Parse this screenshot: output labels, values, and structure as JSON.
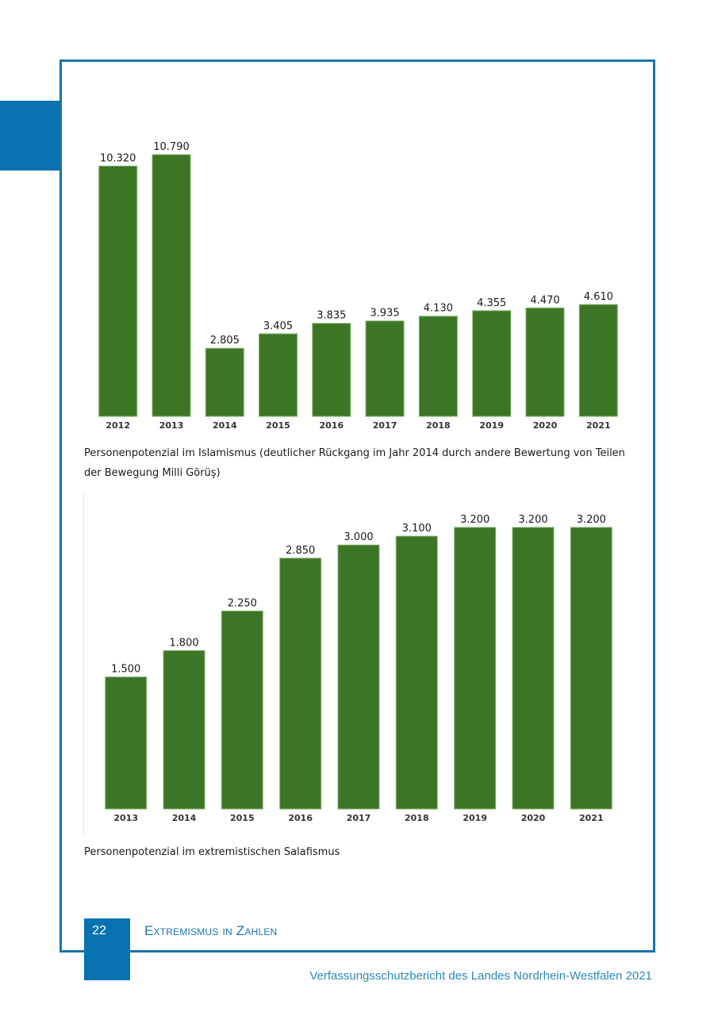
{
  "chart_data": [
    {
      "type": "bar",
      "categories": [
        "2012",
        "2013",
        "2014",
        "2015",
        "2016",
        "2017",
        "2018",
        "2019",
        "2020",
        "2021"
      ],
      "values": [
        10320,
        10790,
        2805,
        3405,
        3835,
        3935,
        4130,
        4355,
        4470,
        4610
      ],
      "value_labels": [
        "10.320",
        "10.790",
        "2.805",
        "3.405",
        "3.835",
        "3.935",
        "4.130",
        "4.355",
        "4.470",
        "4.610"
      ],
      "ylim": [
        0,
        10790
      ],
      "grid": false,
      "color": "#3d7526"
    },
    {
      "type": "bar",
      "categories": [
        "2013",
        "2014",
        "2015",
        "2016",
        "2017",
        "2018",
        "2019",
        "2020",
        "2021"
      ],
      "values": [
        1500,
        1800,
        2250,
        2850,
        3000,
        3100,
        3200,
        3200,
        3200
      ],
      "value_labels": [
        "1.500",
        "1.800",
        "2.250",
        "2.850",
        "3.000",
        "3.100",
        "3.200",
        "3.200",
        "3.200"
      ],
      "ylim": [
        0,
        3200
      ],
      "grid": false,
      "color": "#3d7526"
    }
  ],
  "captions": {
    "chart1": "Personenpotenzial im Islamismus (deutlicher Rückgang im Jahr 2014 durch andere Bewertung von Teilen der Bewegung Milli Görüş)",
    "chart2": "Personenpotenzial im extremistischen Salafismus"
  },
  "footer": {
    "page_number": "22",
    "section": "Extremismus in Zahlen",
    "publication": "Verfassungsschutzbericht des Landes Nordrhein-Westfalen 2021"
  },
  "colors": {
    "accent": "#0873b0",
    "bar": "#3d7526"
  }
}
